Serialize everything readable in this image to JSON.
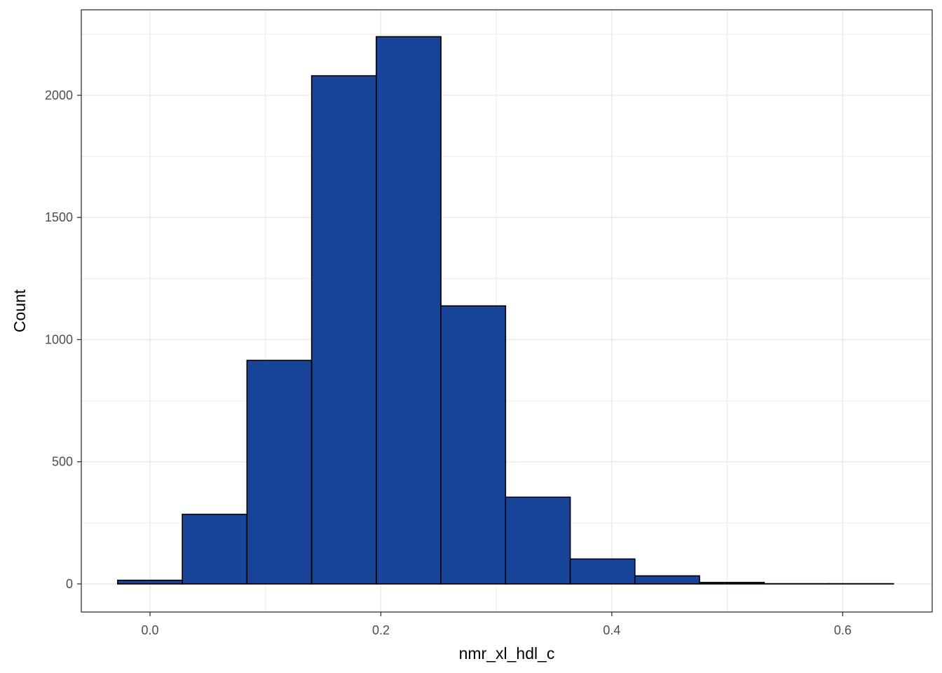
{
  "chart_data": {
    "type": "bar",
    "subtype": "histogram",
    "title": "",
    "xlabel": "nmr_xl_hdl_c",
    "ylabel": "Count",
    "xlim": [
      -0.0595,
      0.6775
    ],
    "ylim": [
      -115,
      2350
    ],
    "x_ticks": [
      0.0,
      0.2,
      0.4,
      0.6
    ],
    "x_tick_labels": [
      "0.0",
      "0.2",
      "0.4",
      "0.6"
    ],
    "y_ticks": [
      0,
      500,
      1000,
      1500,
      2000
    ],
    "y_tick_labels": [
      "0",
      "500",
      "1000",
      "1500",
      "2000"
    ],
    "bins": [
      {
        "x0": -0.028,
        "x1": 0.028,
        "count": 15
      },
      {
        "x0": 0.028,
        "x1": 0.084,
        "count": 285
      },
      {
        "x0": 0.084,
        "x1": 0.14,
        "count": 915
      },
      {
        "x0": 0.14,
        "x1": 0.196,
        "count": 2080
      },
      {
        "x0": 0.196,
        "x1": 0.252,
        "count": 2240
      },
      {
        "x0": 0.252,
        "x1": 0.308,
        "count": 1138
      },
      {
        "x0": 0.308,
        "x1": 0.364,
        "count": 355
      },
      {
        "x0": 0.364,
        "x1": 0.42,
        "count": 102
      },
      {
        "x0": 0.42,
        "x1": 0.476,
        "count": 33
      },
      {
        "x0": 0.476,
        "x1": 0.532,
        "count": 6
      },
      {
        "x0": 0.532,
        "x1": 0.588,
        "count": 1
      },
      {
        "x0": 0.588,
        "x1": 0.644,
        "count": 1
      }
    ],
    "grid": true,
    "theme": "bw",
    "legend": "none",
    "colors": {
      "fill": "#18449a",
      "outline": "#000000",
      "grid": "#ebebeb",
      "panel_border": "#333333"
    }
  }
}
